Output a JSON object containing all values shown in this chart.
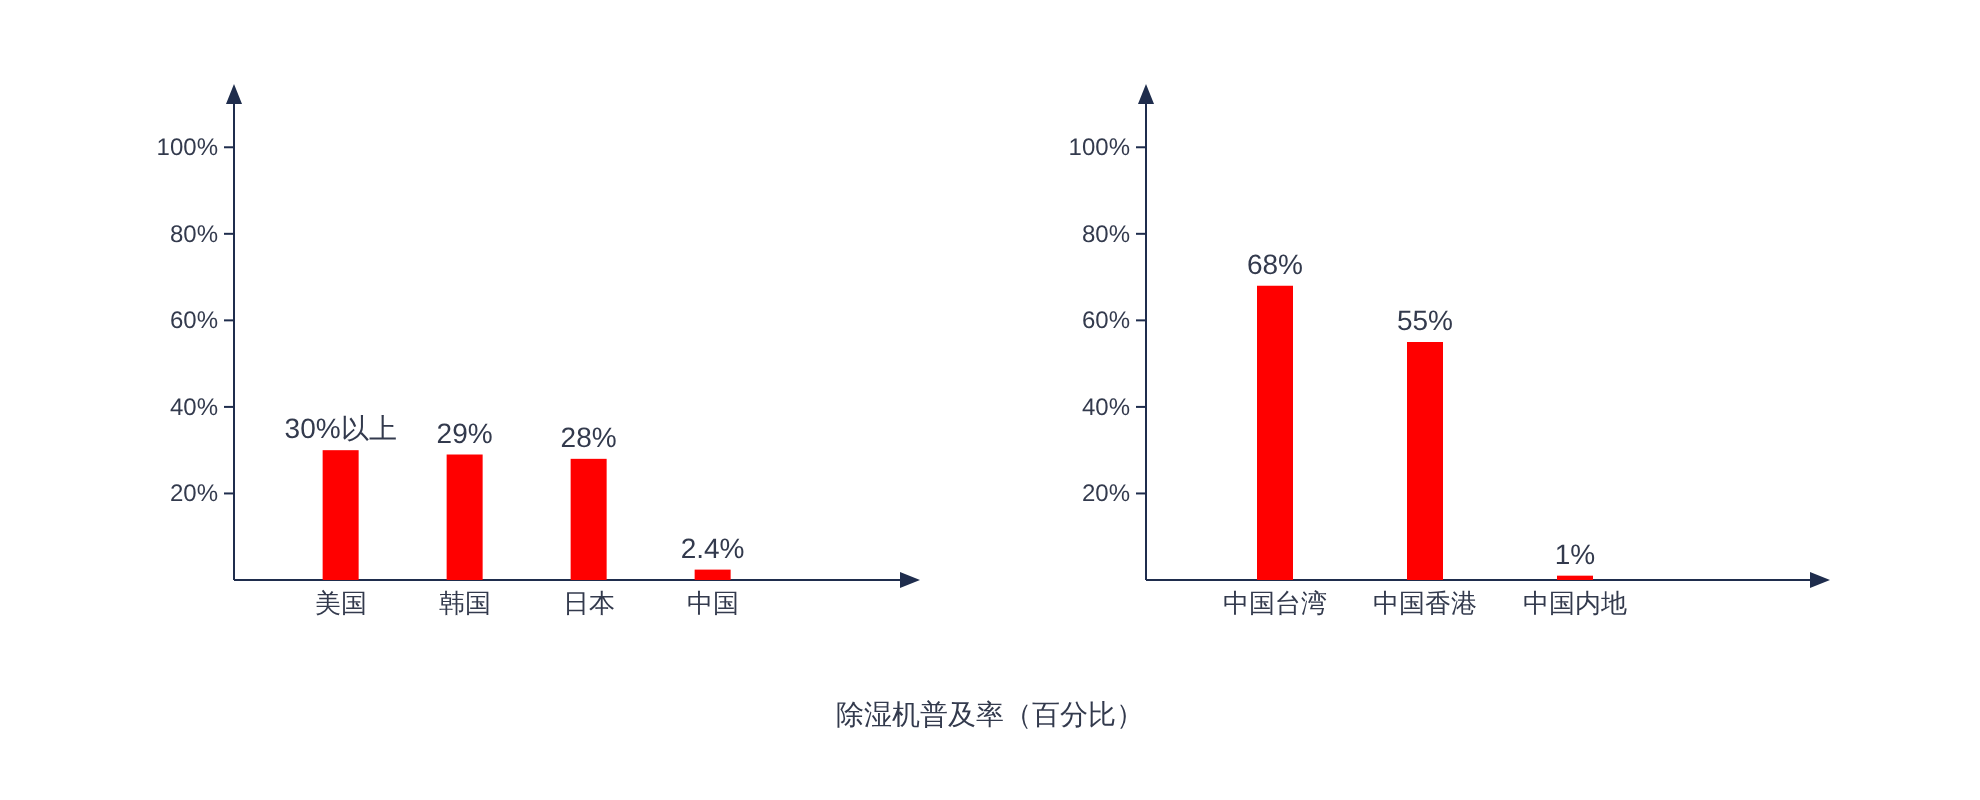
{
  "chart_data": [
    {
      "type": "bar",
      "categories": [
        "美国",
        "韩国",
        "日本",
        "中国"
      ],
      "series": [
        {
          "color": "#ff0000",
          "values": [
            30,
            29,
            28,
            2.4
          ],
          "value_labels": [
            "30%以上",
            "29%",
            "28%",
            "2.4%"
          ]
        }
      ],
      "ylim": [
        0,
        110
      ],
      "yticks": [
        {
          "value": 20,
          "label": "20%"
        },
        {
          "value": 40,
          "label": "40%"
        },
        {
          "value": 60,
          "label": "60%"
        },
        {
          "value": 80,
          "label": "80%"
        },
        {
          "value": 100,
          "label": "100%"
        }
      ],
      "grid": false
    },
    {
      "type": "bar",
      "categories": [
        "中国台湾",
        "中国香港",
        "中国内地"
      ],
      "series": [
        {
          "color": "#ff0000",
          "values": [
            68,
            55,
            1
          ],
          "value_labels": [
            "68%",
            "55%",
            "1%"
          ]
        }
      ],
      "ylim": [
        0,
        110
      ],
      "yticks": [
        {
          "value": 20,
          "label": "20%"
        },
        {
          "value": 40,
          "label": "40%"
        },
        {
          "value": 60,
          "label": "60%"
        },
        {
          "value": 80,
          "label": "80%"
        },
        {
          "value": 100,
          "label": "100%"
        }
      ],
      "grid": false,
      "annotations": [
        "除湿机普及率（百分比）"
      ]
    }
  ]
}
